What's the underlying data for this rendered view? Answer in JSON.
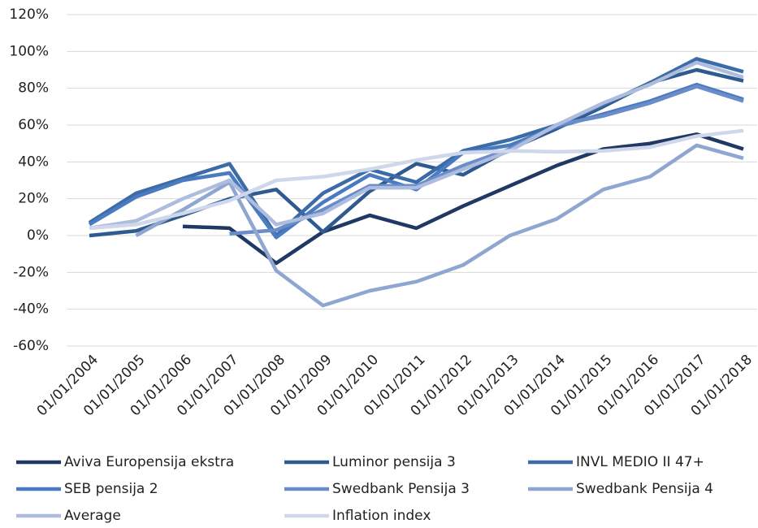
{
  "chart_data": {
    "type": "line",
    "categories": [
      "01/01/2004",
      "01/01/2005",
      "01/01/2006",
      "01/01/2007",
      "01/01/2008",
      "01/01/2009",
      "01/01/2010",
      "01/01/2011",
      "01/01/2012",
      "01/01/2013",
      "01/01/2014",
      "01/01/2015",
      "01/01/2016",
      "01/01/2017",
      "01/01/2018"
    ],
    "ylim": [
      -60,
      120
    ],
    "yticks": [
      {
        "value": -60,
        "label": "-60%"
      },
      {
        "value": -40,
        "label": "-40%"
      },
      {
        "value": -20,
        "label": "-20%"
      },
      {
        "value": 0,
        "label": "0%"
      },
      {
        "value": 20,
        "label": "20%"
      },
      {
        "value": 40,
        "label": "40%"
      },
      {
        "value": 60,
        "label": "60%"
      },
      {
        "value": 80,
        "label": "80%"
      },
      {
        "value": 100,
        "label": "100%"
      },
      {
        "value": 120,
        "label": "120%"
      }
    ],
    "grid": true,
    "series": [
      {
        "name": "Aviva Europensija ekstra",
        "color": "#203864",
        "values": [
          null,
          null,
          5,
          4,
          -15,
          2,
          11,
          4,
          16,
          27,
          38,
          47,
          50,
          55,
          47
        ]
      },
      {
        "name": "Luminor pensija 3",
        "color": "#2f5a8f",
        "values": [
          0,
          2.5,
          11,
          20,
          25,
          2,
          24,
          39,
          33,
          47,
          58,
          70,
          83,
          90,
          84
        ]
      },
      {
        "name": "INVL MEDIO II 47+",
        "color": "#3b6ca7",
        "values": [
          7,
          23,
          31,
          39,
          0,
          23,
          36,
          29,
          46,
          52,
          60,
          71,
          83,
          96,
          89
        ]
      },
      {
        "name": "SEB pensija 2",
        "color": "#4a7bc0",
        "values": [
          6,
          21,
          30,
          34,
          -1,
          18,
          33,
          25,
          45,
          49,
          59,
          66,
          73,
          82,
          74
        ]
      },
      {
        "name": "Swedbank Pensija 3",
        "color": "#6a8cc8",
        "values": [
          null,
          null,
          null,
          1,
          3,
          14,
          27,
          27,
          38,
          47,
          60,
          65,
          72,
          81,
          73
        ]
      },
      {
        "name": "Swedbank Pensija 4",
        "color": "#8fa6d0",
        "values": [
          null,
          0,
          14,
          29,
          -19,
          -38,
          -30,
          -25,
          -16,
          0,
          9,
          25,
          32,
          49,
          42
        ]
      },
      {
        "name": "Average",
        "color": "#aebcdd",
        "values": [
          4,
          8,
          20,
          30,
          6,
          12,
          26,
          26,
          36,
          46,
          60,
          72,
          82,
          94,
          86
        ]
      },
      {
        "name": "Inflation index",
        "color": "#cfd7ea",
        "values": [
          4,
          6,
          12,
          19,
          30,
          32,
          36,
          41,
          45,
          46,
          45.5,
          46,
          48,
          54,
          57
        ]
      }
    ]
  }
}
